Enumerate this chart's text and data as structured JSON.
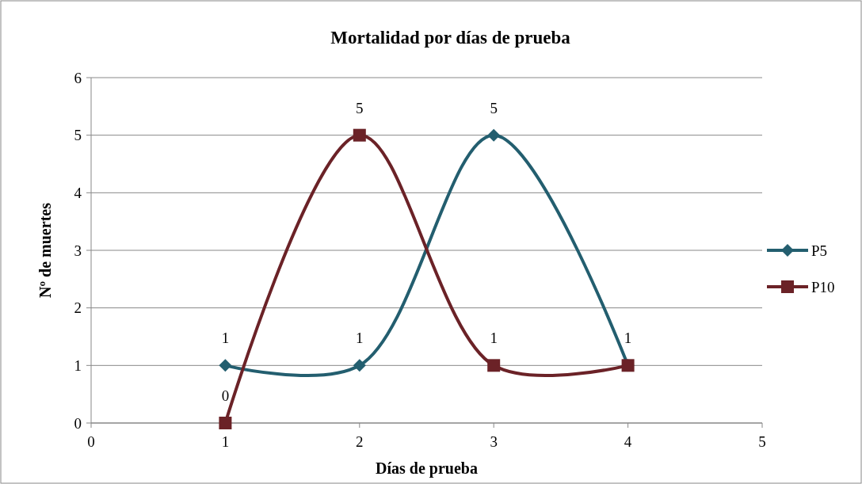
{
  "chart_data": {
    "type": "line",
    "title": "Mortalidad por días de prueba",
    "xlabel": "Días de prueba",
    "ylabel": "Nº de muertes",
    "xlim": [
      0,
      5
    ],
    "xticks": [
      0,
      1,
      2,
      3,
      4,
      5
    ],
    "ylim": [
      0,
      6
    ],
    "yticks": [
      0,
      1,
      2,
      3,
      4,
      5,
      6
    ],
    "grid": "y",
    "legend": "right",
    "series": [
      {
        "name": "P5",
        "color": "#235e6f",
        "marker": "diamond",
        "x": [
          1,
          2,
          3,
          4
        ],
        "values": [
          1,
          1,
          5,
          1
        ],
        "value_labels": [
          "1",
          "1",
          "5",
          "1"
        ]
      },
      {
        "name": "P10",
        "color": "#6b2227",
        "marker": "square",
        "x": [
          1,
          2,
          3,
          4
        ],
        "values": [
          0,
          5,
          1,
          1
        ],
        "value_labels": [
          "0",
          "5",
          "1",
          null
        ]
      }
    ]
  }
}
